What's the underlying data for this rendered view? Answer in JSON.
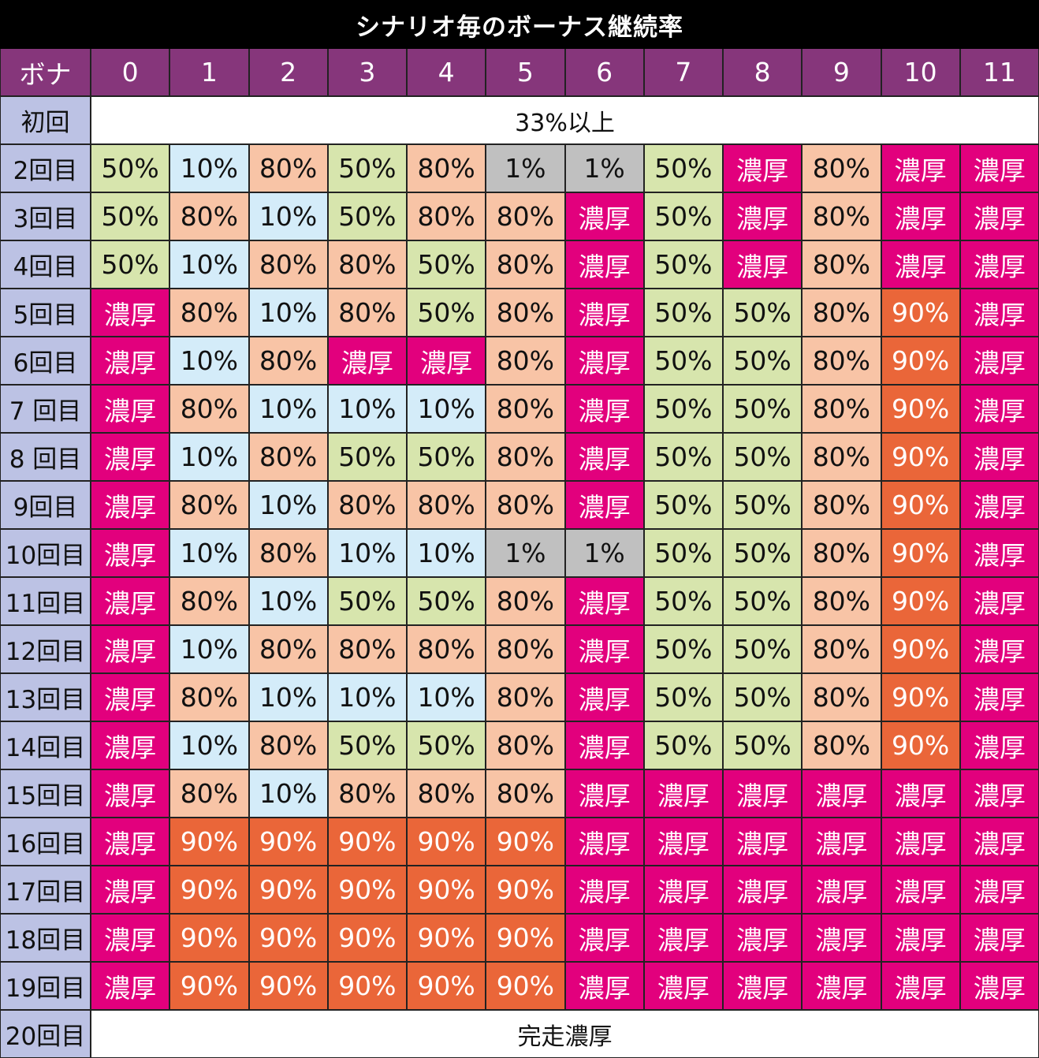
{
  "title": "シナリオ毎のボーナス継続率",
  "corner_label": "ボナ",
  "columns": [
    "0",
    "1",
    "2",
    "3",
    "4",
    "5",
    "6",
    "7",
    "8",
    "9",
    "10",
    "11"
  ],
  "first_row": {
    "label": "初回",
    "value": "33%以上"
  },
  "rows": [
    {
      "label": "2回目",
      "values": [
        "50%",
        "10%",
        "80%",
        "50%",
        "80%",
        "1%",
        "1%",
        "50%",
        "濃厚",
        "80%",
        "濃厚",
        "濃厚"
      ]
    },
    {
      "label": "3回目",
      "values": [
        "50%",
        "80%",
        "10%",
        "50%",
        "80%",
        "80%",
        "濃厚",
        "50%",
        "濃厚",
        "80%",
        "濃厚",
        "濃厚"
      ]
    },
    {
      "label": "4回目",
      "values": [
        "50%",
        "10%",
        "80%",
        "80%",
        "50%",
        "80%",
        "濃厚",
        "50%",
        "濃厚",
        "80%",
        "濃厚",
        "濃厚"
      ]
    },
    {
      "label": "5回目",
      "values": [
        "濃厚",
        "80%",
        "10%",
        "80%",
        "50%",
        "80%",
        "濃厚",
        "50%",
        "50%",
        "80%",
        "90%",
        "濃厚"
      ]
    },
    {
      "label": "6回目",
      "values": [
        "濃厚",
        "10%",
        "80%",
        "濃厚",
        "濃厚",
        "80%",
        "濃厚",
        "50%",
        "50%",
        "80%",
        "90%",
        "濃厚"
      ]
    },
    {
      "label": "7 回目",
      "values": [
        "濃厚",
        "80%",
        "10%",
        "10%",
        "10%",
        "80%",
        "濃厚",
        "50%",
        "50%",
        "80%",
        "90%",
        "濃厚"
      ]
    },
    {
      "label": "8 回目",
      "values": [
        "濃厚",
        "10%",
        "80%",
        "50%",
        "50%",
        "80%",
        "濃厚",
        "50%",
        "50%",
        "80%",
        "90%",
        "濃厚"
      ]
    },
    {
      "label": "9回目",
      "values": [
        "濃厚",
        "80%",
        "10%",
        "80%",
        "80%",
        "80%",
        "濃厚",
        "50%",
        "50%",
        "80%",
        "90%",
        "濃厚"
      ]
    },
    {
      "label": "10回目",
      "values": [
        "濃厚",
        "10%",
        "80%",
        "10%",
        "10%",
        "1%",
        "1%",
        "50%",
        "50%",
        "80%",
        "90%",
        "濃厚"
      ]
    },
    {
      "label": "11回目",
      "values": [
        "濃厚",
        "80%",
        "10%",
        "50%",
        "50%",
        "80%",
        "濃厚",
        "50%",
        "50%",
        "80%",
        "90%",
        "濃厚"
      ]
    },
    {
      "label": "12回目",
      "values": [
        "濃厚",
        "10%",
        "80%",
        "80%",
        "80%",
        "80%",
        "濃厚",
        "50%",
        "50%",
        "80%",
        "90%",
        "濃厚"
      ]
    },
    {
      "label": "13回目",
      "values": [
        "濃厚",
        "80%",
        "10%",
        "10%",
        "10%",
        "80%",
        "濃厚",
        "50%",
        "50%",
        "80%",
        "90%",
        "濃厚"
      ]
    },
    {
      "label": "14回目",
      "values": [
        "濃厚",
        "10%",
        "80%",
        "50%",
        "50%",
        "80%",
        "濃厚",
        "50%",
        "50%",
        "80%",
        "90%",
        "濃厚"
      ]
    },
    {
      "label": "15回目",
      "values": [
        "濃厚",
        "80%",
        "10%",
        "80%",
        "80%",
        "80%",
        "濃厚",
        "濃厚",
        "濃厚",
        "濃厚",
        "濃厚",
        "濃厚"
      ]
    },
    {
      "label": "16回目",
      "values": [
        "濃厚",
        "90%",
        "90%",
        "90%",
        "90%",
        "90%",
        "濃厚",
        "濃厚",
        "濃厚",
        "濃厚",
        "濃厚",
        "濃厚"
      ]
    },
    {
      "label": "17回目",
      "values": [
        "濃厚",
        "90%",
        "90%",
        "90%",
        "90%",
        "90%",
        "濃厚",
        "濃厚",
        "濃厚",
        "濃厚",
        "濃厚",
        "濃厚"
      ]
    },
    {
      "label": "18回目",
      "values": [
        "濃厚",
        "90%",
        "90%",
        "90%",
        "90%",
        "90%",
        "濃厚",
        "濃厚",
        "濃厚",
        "濃厚",
        "濃厚",
        "濃厚"
      ]
    },
    {
      "label": "19回目",
      "values": [
        "濃厚",
        "90%",
        "90%",
        "90%",
        "90%",
        "90%",
        "濃厚",
        "濃厚",
        "濃厚",
        "濃厚",
        "濃厚",
        "濃厚"
      ]
    }
  ],
  "last_row": {
    "label": "20回目",
    "value": "完走濃厚"
  },
  "cell_colors": {
    "1%": {
      "bg": "#c0c0c0",
      "fg": "#111111"
    },
    "10%": {
      "bg": "#d4ecf9",
      "fg": "#111111"
    },
    "50%": {
      "bg": "#d7e5ad",
      "fg": "#111111"
    },
    "80%": {
      "bg": "#f8c4a6",
      "fg": "#111111"
    },
    "90%": {
      "bg": "#ea6639",
      "fg": "#ffffff"
    },
    "濃厚": {
      "bg": "#e2007d",
      "fg": "#ffffff"
    }
  }
}
